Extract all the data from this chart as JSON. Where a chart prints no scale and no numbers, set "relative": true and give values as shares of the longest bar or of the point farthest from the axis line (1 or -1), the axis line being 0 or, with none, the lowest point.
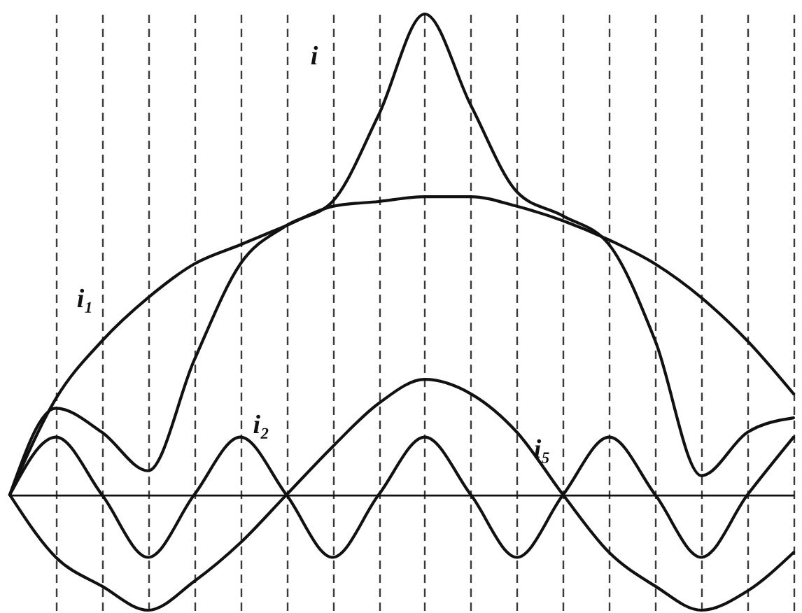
{
  "chart_data": {
    "type": "line",
    "relative": true,
    "grid": "x",
    "categories": [
      null,
      null,
      null,
      null,
      null,
      null,
      null,
      null,
      null,
      null,
      null,
      null,
      null,
      null,
      null,
      null,
      null,
      null
    ],
    "series": [
      {
        "name": "i",
        "color": "#111111",
        "values": [
          0,
          0.18,
          0.13,
          0.05,
          0.28,
          0.48,
          0.56,
          0.61,
          0.79,
          1,
          0.81,
          0.63,
          0.58,
          0.52,
          0.32,
          0.04,
          0.13,
          0.16
        ]
      },
      {
        "name": "i₁",
        "color": "#111111",
        "values": [
          0,
          0.2,
          0.32,
          0.41,
          0.48,
          0.52,
          0.56,
          0.6,
          0.61,
          0.62,
          0.62,
          0.6,
          0.57,
          0.53,
          0.48,
          0.41,
          0.32,
          0.21
        ]
      },
      {
        "name": "i₂",
        "color": "#111111",
        "values": [
          0,
          0.12,
          0,
          -0.13,
          0,
          0.12,
          0,
          -0.13,
          0,
          0.12,
          0,
          -0.13,
          0,
          0.12,
          0,
          -0.13,
          0,
          0.12
        ]
      },
      {
        "name": "i₅",
        "color": "#111111",
        "values": [
          0,
          -0.13,
          -0.19,
          -0.24,
          -0.18,
          -0.1,
          0,
          0.1,
          0.19,
          0.24,
          0.21,
          0.13,
          0,
          -0.12,
          -0.19,
          -0.24,
          -0.2,
          -0.12
        ]
      }
    ]
  }
}
